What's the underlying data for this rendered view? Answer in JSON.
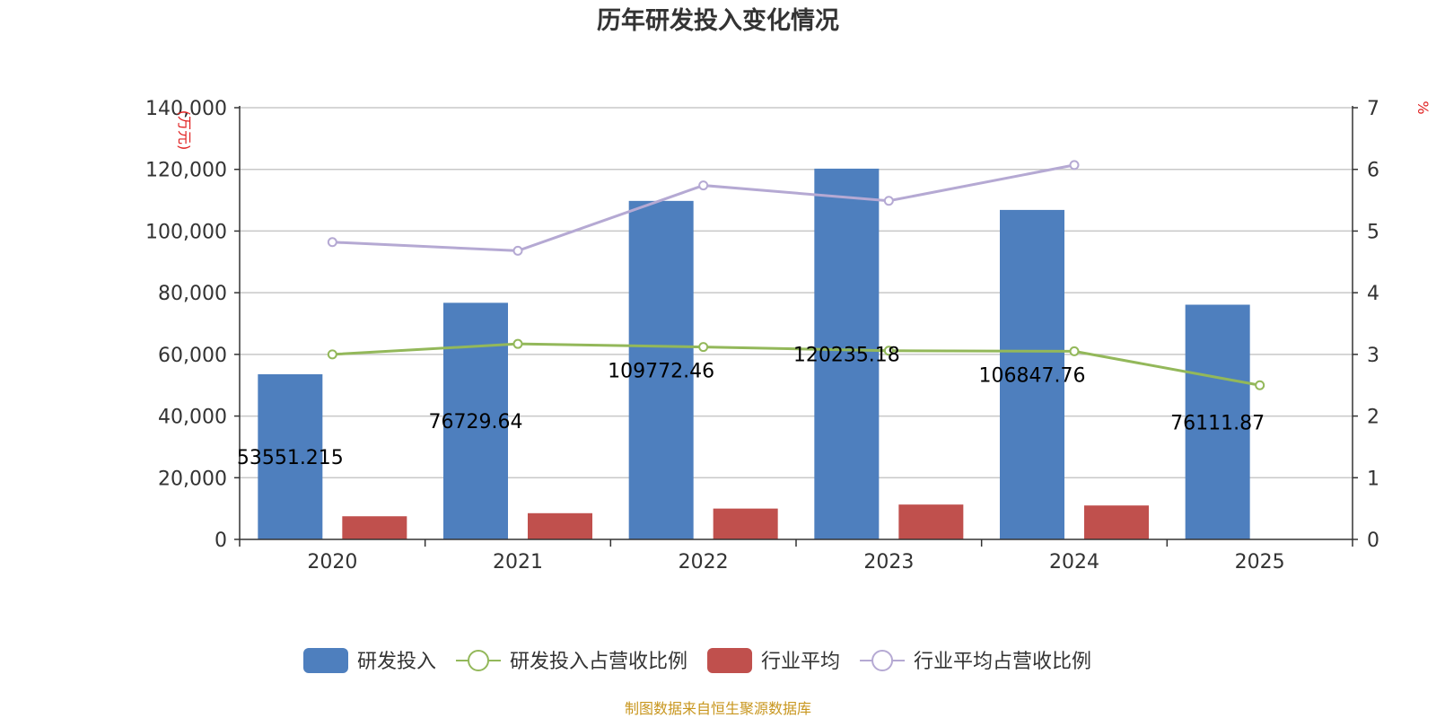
{
  "chart_data": {
    "type": "bar",
    "title": "历年研发投入变化情况",
    "categories": [
      "2020",
      "2021",
      "2022",
      "2023",
      "2024",
      "2025"
    ],
    "y_left": {
      "unit": "(万元)",
      "ylim": [
        0,
        140000
      ],
      "ticks": [
        "0",
        "20,000",
        "40,000",
        "60,000",
        "80,000",
        "100,000",
        "120,000",
        "140,000"
      ]
    },
    "y_right": {
      "unit": "%",
      "ylim": [
        0,
        7
      ],
      "ticks": [
        "0",
        "1",
        "2",
        "3",
        "4",
        "5",
        "6",
        "7"
      ]
    },
    "grid": true,
    "legend_position": "bottom",
    "series": [
      {
        "name": "研发投入",
        "kind": "bar",
        "axis": "left",
        "color": "#4e7fbe",
        "values": [
          53551.215,
          76729.64,
          109772.46,
          120235.18,
          106847.76,
          76111.87
        ],
        "labels": [
          "53551.215",
          "76729.64",
          "109772.46",
          "120235.18",
          "106847.76",
          "76111.87"
        ]
      },
      {
        "name": "研发投入占营收比例",
        "kind": "line",
        "axis": "right",
        "color": "#93b85a",
        "values": [
          3.0,
          3.17,
          3.12,
          3.06,
          3.05,
          2.5
        ]
      },
      {
        "name": "行业平均",
        "kind": "bar",
        "axis": "left",
        "color": "#c0504d",
        "values": [
          7500,
          8500,
          10000,
          11300,
          11000,
          null
        ]
      },
      {
        "name": "行业平均占营收比例",
        "kind": "line",
        "axis": "right",
        "color": "#b5a9d3",
        "values": [
          4.82,
          4.68,
          5.74,
          5.49,
          6.07,
          null
        ]
      }
    ],
    "source": "制图数据来自恒生聚源数据库"
  }
}
